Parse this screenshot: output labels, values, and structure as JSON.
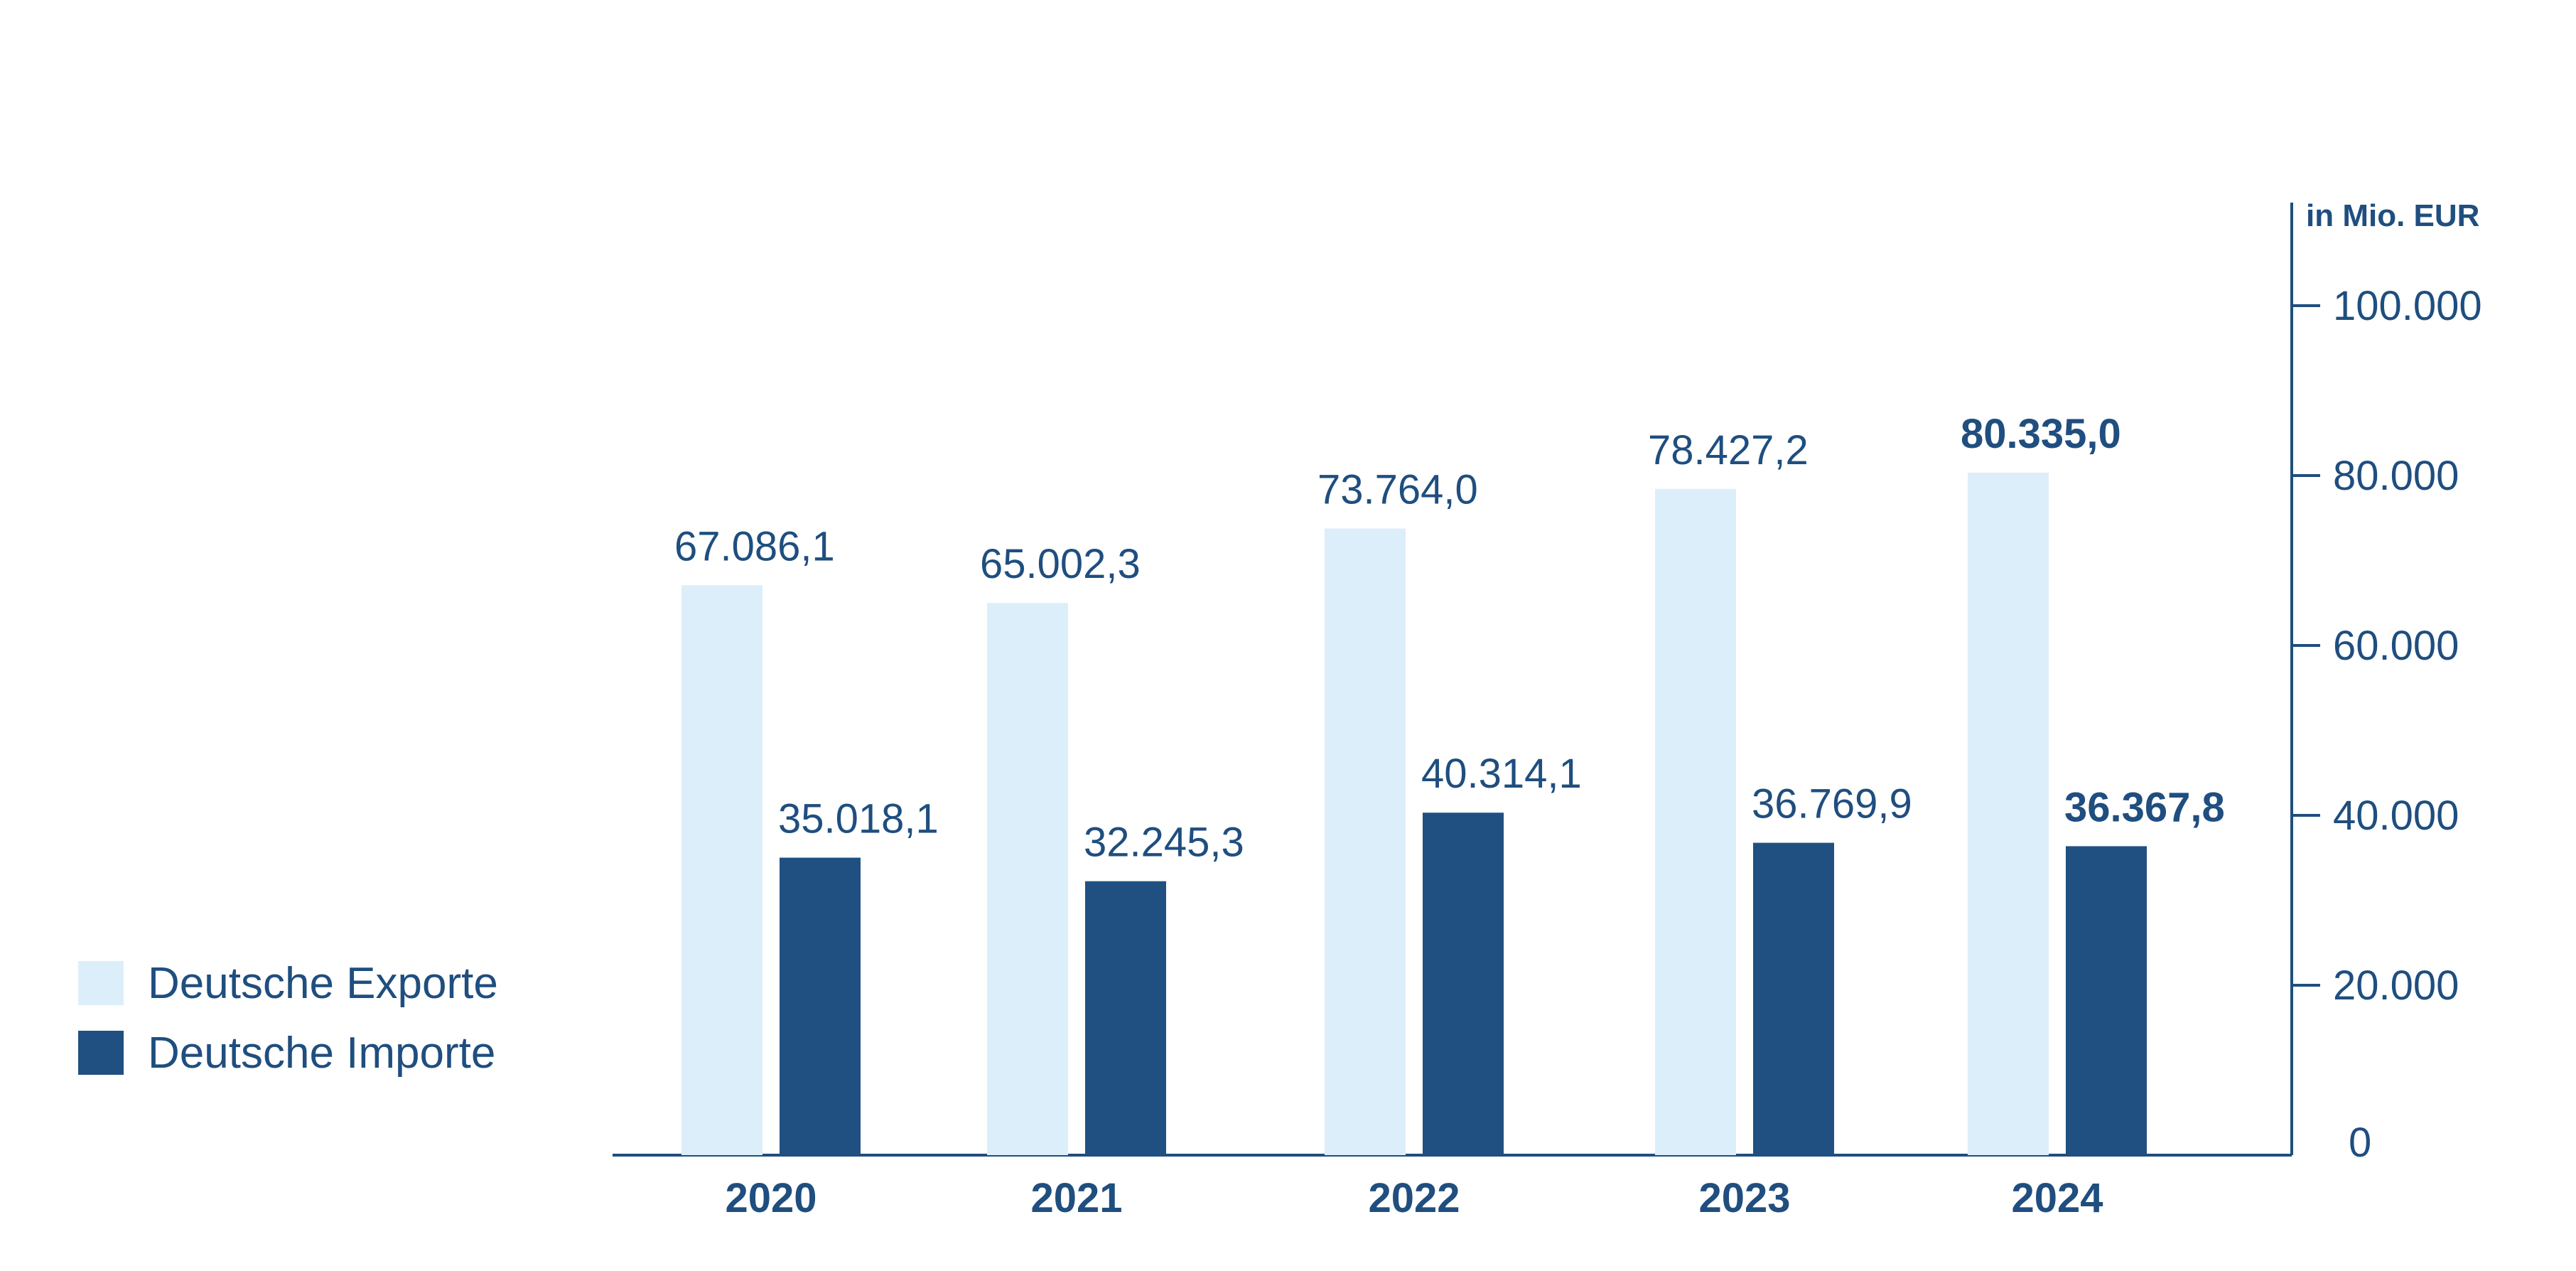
{
  "chart_data": {
    "type": "bar",
    "categories": [
      "2020",
      "2021",
      "2022",
      "2023",
      "2024"
    ],
    "series": [
      {
        "name": "Deutsche Exporte",
        "values": [
          67086.1,
          65002.3,
          73764.0,
          78427.2,
          80335.0
        ],
        "labels": [
          "67.086,1",
          "65.002,3",
          "73.764,0",
          "78.427,2",
          "80.335,0"
        ]
      },
      {
        "name": "Deutsche Importe",
        "values": [
          35018.1,
          32245.3,
          40314.1,
          36769.9,
          36367.8
        ],
        "labels": [
          "35.018,1",
          "32.245,3",
          "40.314,1",
          "36.769,9",
          "36.367,8"
        ]
      }
    ],
    "ylabel": "in Mio. EUR",
    "ylim": [
      0,
      110000
    ],
    "yticks": [
      0,
      20000,
      40000,
      60000,
      80000,
      100000
    ],
    "ytick_labels": [
      "0",
      "20.000",
      "40.000",
      "60.000",
      "80.000",
      "100.000"
    ],
    "y_axis_side": "right",
    "grid": false,
    "legend_position": "left",
    "highlight_last_category": true
  },
  "colors": {
    "exports": "#DDEEFB",
    "imports": "#1F5081",
    "text": "#1F4E7F",
    "axis": "#1F4E7F"
  }
}
